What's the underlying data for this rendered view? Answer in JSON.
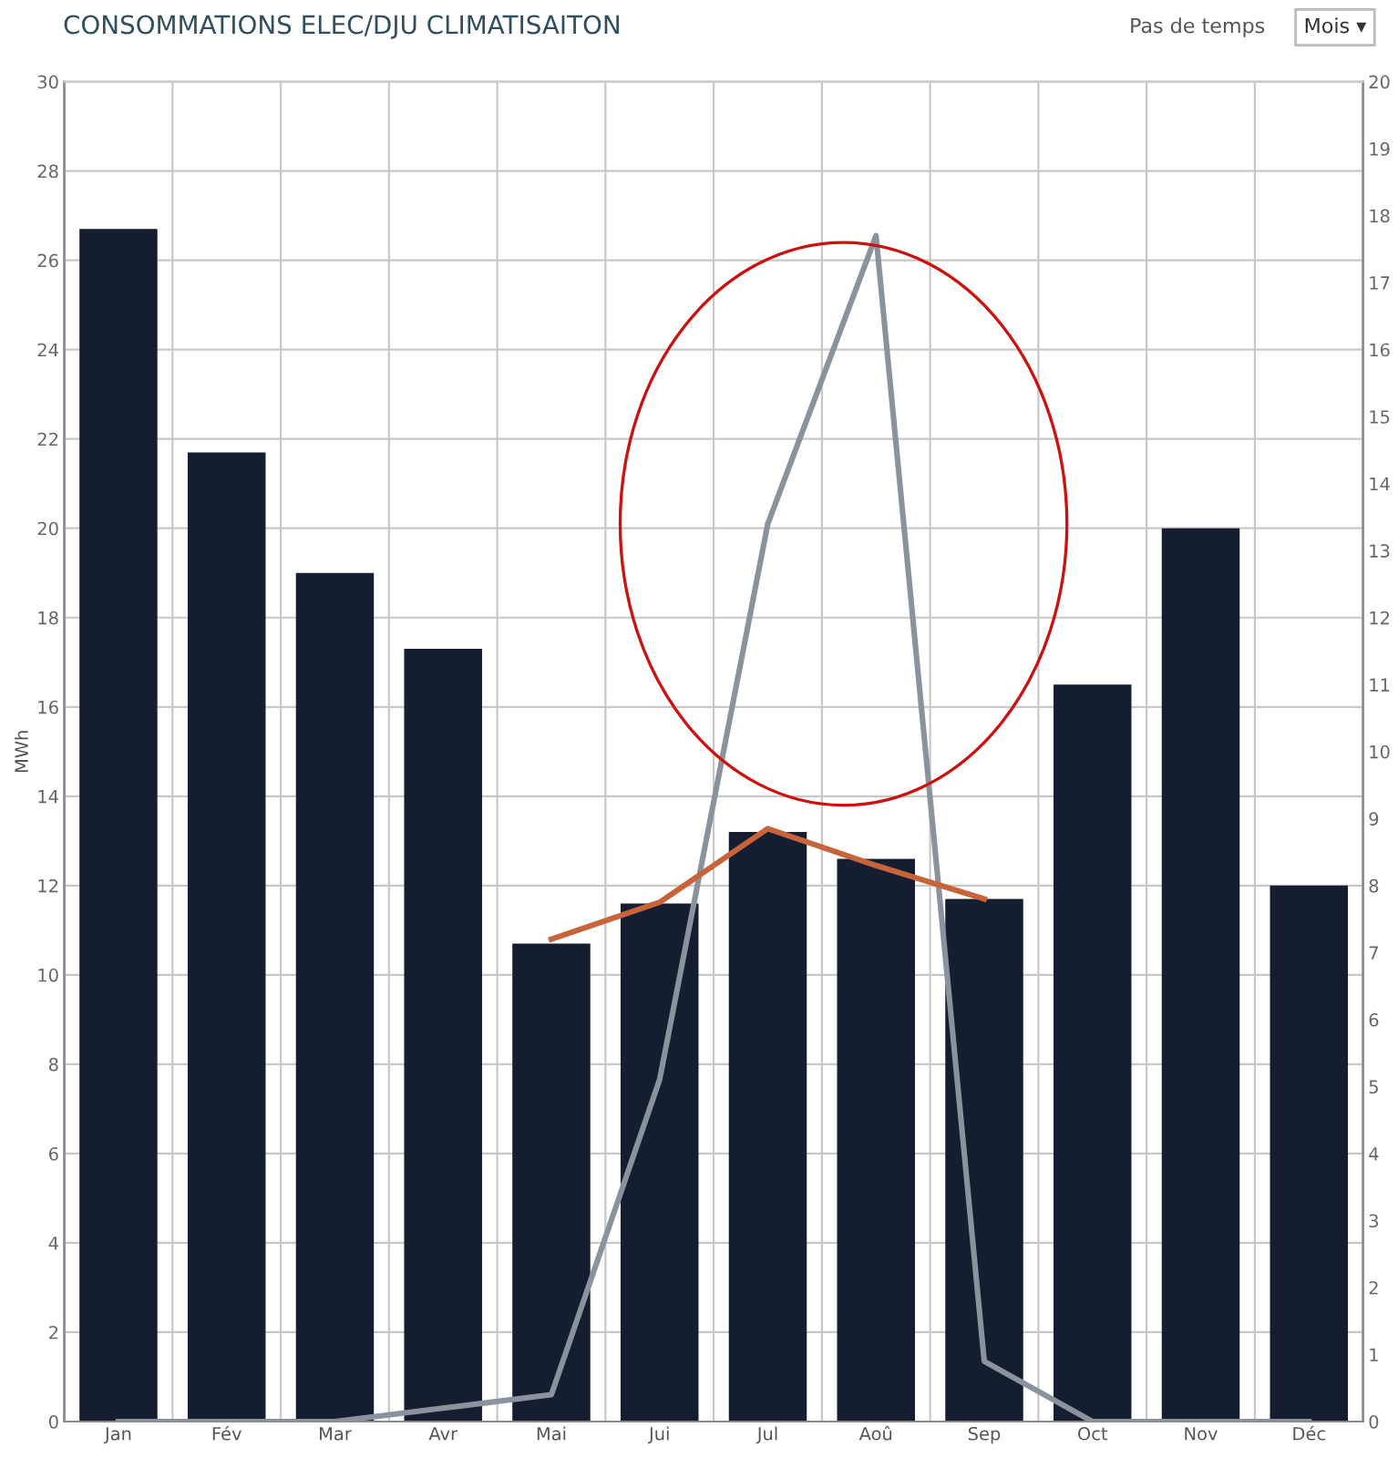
{
  "chart_data": {
    "type": "bar",
    "title": "CONSOMMATIONS ELEC/DJU CLIMATISAITON",
    "ylabel": "MWh",
    "annotations": [
      "Pas de temps",
      "Mois ▾"
    ],
    "categories": [
      "Jan",
      "Fév",
      "Mar",
      "Avr",
      "Mai",
      "Jui",
      "Jul",
      "Aoû",
      "Sep",
      "Oct",
      "Nov",
      "Déc"
    ],
    "series": [
      {
        "color": "#141e30",
        "values": [
          26.7,
          21.7,
          19.0,
          17.3,
          10.7,
          11.6,
          13.2,
          12.6,
          11.7,
          16.5,
          20.0,
          12.0
        ]
      },
      {
        "type": "line",
        "axis": "y2",
        "color": "#8a929e",
        "values": [
          0,
          0,
          0,
          0.2,
          0.4,
          5.1,
          13.4,
          17.7,
          0.9,
          0,
          0,
          0
        ]
      },
      {
        "type": "line",
        "axis": "y2",
        "color": "#c8643a",
        "values": [
          null,
          null,
          null,
          null,
          7.2,
          7.75,
          8.85,
          8.3,
          7.8,
          null,
          null,
          null
        ]
      }
    ],
    "ylim": [
      0,
      30
    ],
    "yticks": [
      0,
      2,
      4,
      6,
      8,
      10,
      12,
      14,
      16,
      18,
      20,
      22,
      24,
      26,
      28,
      30
    ],
    "y2lim": [
      0,
      20
    ],
    "y2ticks": [
      0,
      1,
      2,
      3,
      4,
      5,
      6,
      7,
      8,
      9,
      10,
      11,
      12,
      13,
      14,
      15,
      16,
      17,
      18,
      19,
      20
    ],
    "grid": true,
    "legend": false
  }
}
